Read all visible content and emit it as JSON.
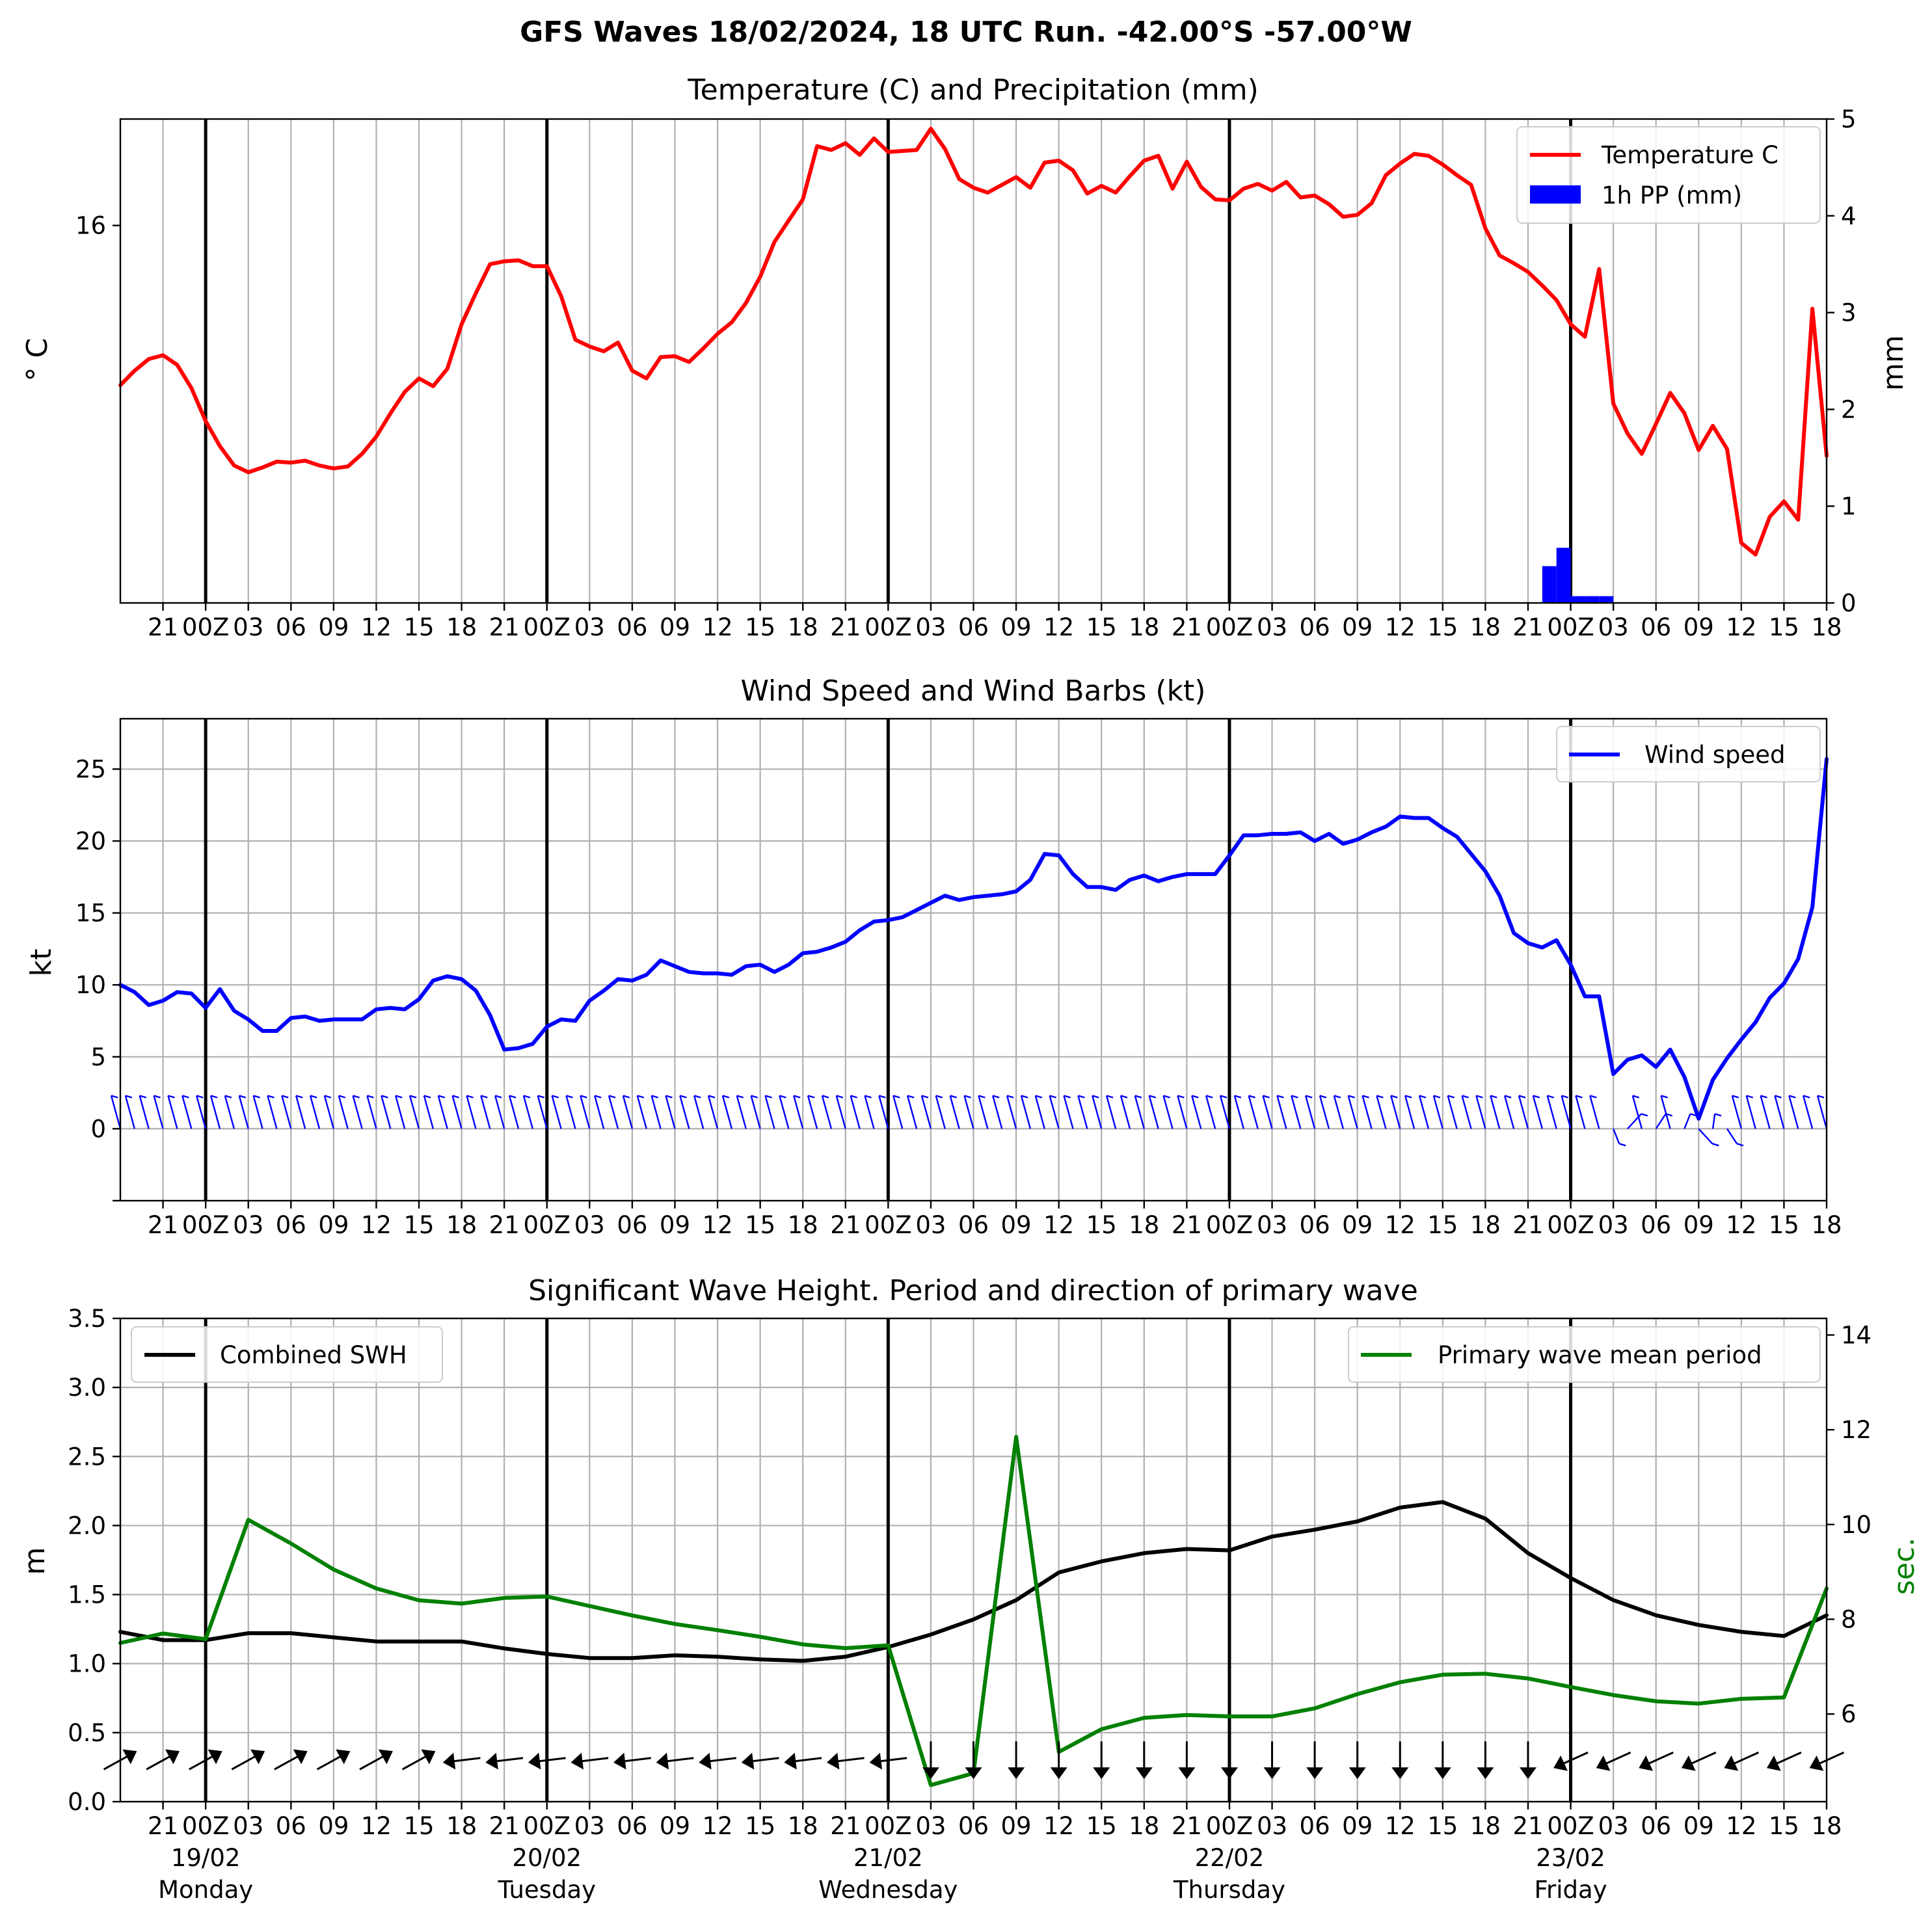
{
  "suptitle": "GFS Waves 18/02/2024, 18 UTC Run. -42.00°S -57.00°W",
  "colors": {
    "temperature": "#ff0000",
    "precip": "#0000ff",
    "wind": "#0000ff",
    "swh": "#000000",
    "period": "#008000",
    "grid": "#b0b0b0",
    "day_line": "#000000"
  },
  "time_axis": {
    "x_ticks": [
      "21",
      "00Z",
      "03",
      "06",
      "09",
      "12",
      "15",
      "18",
      "21",
      "00Z",
      "03",
      "06",
      "09",
      "12",
      "15",
      "18",
      "21",
      "00Z",
      "03",
      "06",
      "09",
      "12",
      "15",
      "18",
      "21",
      "00Z",
      "03",
      "06",
      "09",
      "12",
      "15",
      "18",
      "21",
      "00Z",
      "03",
      "06",
      "09",
      "12",
      "15",
      "18"
    ],
    "day_dates": [
      "19/02",
      "20/02",
      "21/02",
      "22/02",
      "23/02"
    ],
    "day_names": [
      "Monday",
      "Tuesday",
      "Wednesday",
      "Thursday",
      "Friday"
    ]
  },
  "chart_data": [
    {
      "type": "line",
      "title": "Temperature (C) and Precipitation (mm)",
      "ylabel": "° C",
      "ylabel_right": "mm",
      "y_ticks": [
        "16"
      ],
      "y_right_ticks": [
        "0",
        "1",
        "2",
        "3",
        "4",
        "5"
      ],
      "ylim_right": [
        0,
        5
      ],
      "ylim": [
        12.1,
        17.1
      ],
      "x_range_hours": [
        18,
        138
      ],
      "legend": [
        "Temperature C",
        "1h PP (mm)"
      ],
      "legend_position": "top-right",
      "grid": true,
      "series": [
        {
          "name": "Temperature C",
          "hours": [
            18,
            19,
            20,
            21,
            22,
            23,
            24,
            25,
            26,
            27,
            28,
            29,
            30,
            31,
            32,
            33,
            34,
            35,
            36,
            37,
            38,
            39,
            40,
            41,
            42,
            43,
            44,
            45,
            46,
            47,
            48,
            49,
            50,
            51,
            52,
            53,
            54,
            55,
            56,
            57,
            58,
            59,
            60,
            61,
            62,
            63,
            64,
            65,
            66,
            67,
            68,
            69,
            70,
            71,
            72,
            73,
            74,
            75,
            76,
            77,
            78,
            79,
            80,
            81,
            82,
            83,
            84,
            85,
            86,
            87,
            88,
            89,
            90,
            91,
            92,
            93,
            94,
            95,
            96,
            97,
            98,
            99,
            100,
            101,
            102,
            103,
            104,
            105,
            106,
            107,
            108,
            109,
            110,
            111,
            112,
            113,
            114,
            115,
            116,
            117,
            118,
            119,
            120,
            121,
            122,
            123,
            124,
            125,
            126,
            127,
            128,
            129,
            130,
            131,
            132,
            133,
            134,
            135,
            136,
            137,
            138
          ],
          "values": [
            14.35,
            14.5,
            14.62,
            14.66,
            14.56,
            14.32,
            13.98,
            13.72,
            13.52,
            13.45,
            13.5,
            13.56,
            13.55,
            13.57,
            13.52,
            13.49,
            13.51,
            13.64,
            13.82,
            14.06,
            14.28,
            14.42,
            14.34,
            14.52,
            14.98,
            15.3,
            15.6,
            15.63,
            15.64,
            15.58,
            15.58,
            15.27,
            14.82,
            14.75,
            14.7,
            14.79,
            14.5,
            14.42,
            14.64,
            14.65,
            14.59,
            14.73,
            14.88,
            15.0,
            15.2,
            15.47,
            15.83,
            16.05,
            16.27,
            16.82,
            16.78,
            16.85,
            16.73,
            16.9,
            16.76,
            16.77,
            16.78,
            17.0,
            16.79,
            16.48,
            16.39,
            16.34,
            16.42,
            16.5,
            16.39,
            16.65,
            16.67,
            16.57,
            16.33,
            16.41,
            16.34,
            16.51,
            16.67,
            16.72,
            16.38,
            16.66,
            16.4,
            16.27,
            16.26,
            16.38,
            16.43,
            16.36,
            16.45,
            16.29,
            16.31,
            16.22,
            16.09,
            16.11,
            16.23,
            16.52,
            16.64,
            16.74,
            16.72,
            16.63,
            16.52,
            16.42,
            15.97,
            15.69,
            15.61,
            15.52,
            15.38,
            15.23,
            14.98,
            14.85,
            15.55,
            14.16,
            13.85,
            13.64,
            13.95,
            14.27,
            14.06,
            13.68,
            13.93,
            13.69,
            12.72,
            12.6,
            12.99,
            13.15,
            12.96,
            15.14,
            13.62
          ]
        },
        {
          "name": "1h PP (mm)",
          "type": "bar",
          "hours": [
            118,
            119,
            120,
            121,
            122
          ],
          "values": [
            0.38,
            0.57,
            0.07,
            0.07,
            0.07
          ]
        }
      ]
    },
    {
      "type": "line",
      "title": "Wind Speed and Wind Barbs (kt)",
      "ylabel": "kt",
      "y_ticks": [
        "0",
        "5",
        "10",
        "15",
        "20",
        "25"
      ],
      "ylim": [
        -5,
        28.5
      ],
      "x_range_hours": [
        18,
        138
      ],
      "legend": [
        "Wind speed"
      ],
      "legend_position": "top-right",
      "grid": true,
      "series": [
        {
          "name": "Wind speed",
          "hours": [
            18,
            19,
            20,
            21,
            22,
            23,
            24,
            25,
            26,
            27,
            28,
            29,
            30,
            31,
            32,
            33,
            34,
            35,
            36,
            37,
            38,
            39,
            40,
            41,
            42,
            43,
            44,
            45,
            46,
            47,
            48,
            49,
            50,
            51,
            52,
            53,
            54,
            55,
            56,
            57,
            58,
            59,
            60,
            61,
            62,
            63,
            64,
            65,
            66,
            67,
            68,
            69,
            70,
            71,
            72,
            73,
            74,
            75,
            76,
            77,
            78,
            79,
            80,
            81,
            82,
            83,
            84,
            85,
            86,
            87,
            88,
            89,
            90,
            91,
            92,
            93,
            94,
            95,
            96,
            97,
            98,
            99,
            100,
            101,
            102,
            103,
            104,
            105,
            106,
            107,
            108,
            109,
            110,
            111,
            112,
            113,
            114,
            115,
            116,
            117,
            118,
            119,
            120,
            121,
            122,
            123,
            124,
            125,
            126,
            127,
            128,
            129,
            130,
            131,
            132,
            133,
            134,
            135,
            136,
            137,
            138
          ],
          "values": [
            10.0,
            9.5,
            8.6,
            8.9,
            9.5,
            9.4,
            8.4,
            9.7,
            8.2,
            7.6,
            6.8,
            6.8,
            7.7,
            7.8,
            7.5,
            7.6,
            7.6,
            7.6,
            8.3,
            8.4,
            8.3,
            9.0,
            10.3,
            10.6,
            10.4,
            9.6,
            7.9,
            5.5,
            5.6,
            5.9,
            7.1,
            7.6,
            7.5,
            8.9,
            9.6,
            10.4,
            10.3,
            10.7,
            11.7,
            11.3,
            10.9,
            10.8,
            10.8,
            10.7,
            11.3,
            11.4,
            10.9,
            11.4,
            12.2,
            12.3,
            12.6,
            13.0,
            13.8,
            14.4,
            14.5,
            14.7,
            15.2,
            15.7,
            16.2,
            15.9,
            16.1,
            16.2,
            16.3,
            16.5,
            17.3,
            19.1,
            19.0,
            17.7,
            16.8,
            16.8,
            16.6,
            17.3,
            17.6,
            17.2,
            17.5,
            17.7,
            17.7,
            17.7,
            19.0,
            20.4,
            20.4,
            20.5,
            20.5,
            20.6,
            20.0,
            20.5,
            19.8,
            20.1,
            20.6,
            21.0,
            21.7,
            21.6,
            21.6,
            20.9,
            20.3,
            19.1,
            17.9,
            16.2,
            13.6,
            12.9,
            12.6,
            13.1,
            11.4,
            9.2,
            9.2,
            3.8,
            4.8,
            5.1,
            4.3,
            5.5,
            3.6,
            0.7,
            3.4,
            4.9,
            6.2,
            7.4,
            9.1,
            10.1,
            11.8,
            15.4,
            25.7
          ]
        }
      ]
    },
    {
      "type": "line",
      "title": "Significant Wave Height. Period and direction of primary wave",
      "ylabel": "m",
      "ylabel_right": "sec.",
      "y_ticks": [
        "0.0",
        "0.5",
        "1.0",
        "1.5",
        "2.0",
        "2.5",
        "3.0",
        "3.5"
      ],
      "y_right_ticks": [
        "6",
        "8",
        "10",
        "12",
        "14"
      ],
      "ylim": [
        0,
        3.5
      ],
      "ylim_right": [
        4.15,
        14.35
      ],
      "x_range_hours": [
        18,
        138
      ],
      "legend": [
        "Combined SWH",
        "Primary wave mean period"
      ],
      "grid": true,
      "series": [
        {
          "name": "Combined SWH",
          "hours": [
            18,
            21,
            24,
            27,
            30,
            33,
            36,
            39,
            42,
            45,
            48,
            51,
            54,
            57,
            60,
            63,
            66,
            69,
            72,
            75,
            78,
            81,
            84,
            87,
            90,
            93,
            96,
            99,
            102,
            105,
            108,
            111,
            114,
            117,
            120,
            123,
            126,
            129,
            132,
            135,
            138
          ],
          "values": [
            1.23,
            1.17,
            1.17,
            1.22,
            1.22,
            1.19,
            1.16,
            1.16,
            1.16,
            1.11,
            1.07,
            1.04,
            1.04,
            1.06,
            1.05,
            1.03,
            1.02,
            1.05,
            1.12,
            1.21,
            1.32,
            1.46,
            1.66,
            1.74,
            1.8,
            1.83,
            1.82,
            1.92,
            1.97,
            2.03,
            2.13,
            2.17,
            2.05,
            1.8,
            1.62,
            1.46,
            1.35,
            1.28,
            1.23,
            1.2,
            1.35
          ]
        },
        {
          "name": "Primary wave mean period",
          "hours": [
            18,
            21,
            24,
            27,
            30,
            33,
            36,
            39,
            42,
            45,
            48,
            51,
            54,
            57,
            60,
            63,
            66,
            69,
            72,
            75,
            78,
            81,
            84,
            87,
            90,
            93,
            96,
            99,
            102,
            105,
            108,
            111,
            114,
            117,
            120,
            123,
            126,
            129,
            132,
            135,
            138
          ],
          "values": [
            7.5,
            7.7,
            7.58,
            10.1,
            9.6,
            9.05,
            8.65,
            8.4,
            8.33,
            8.45,
            8.48,
            8.28,
            8.08,
            7.9,
            7.77,
            7.63,
            7.47,
            7.39,
            7.45,
            4.5,
            4.75,
            11.85,
            5.2,
            5.68,
            5.92,
            5.98,
            5.95,
            5.95,
            6.12,
            6.42,
            6.67,
            6.83,
            6.85,
            6.75,
            6.57,
            6.4,
            6.27,
            6.22,
            6.32,
            6.35,
            8.65
          ]
        }
      ],
      "wave_direction_arrows": {
        "hours": [
          18,
          21,
          24,
          27,
          30,
          33,
          36,
          39,
          42,
          45,
          48,
          51,
          54,
          57,
          60,
          63,
          66,
          69,
          72,
          75,
          78,
          81,
          84,
          87,
          90,
          93,
          96,
          99,
          102,
          105,
          108,
          111,
          114,
          117,
          120,
          123,
          126,
          129,
          132,
          135,
          138
        ],
        "direction": [
          "NE",
          "NE",
          "NE",
          "NE",
          "NE",
          "NE",
          "NE",
          "NE",
          "W",
          "W",
          "W",
          "W",
          "W",
          "W",
          "W",
          "W",
          "W",
          "W",
          "W",
          "S",
          "S",
          "S",
          "S",
          "S",
          "S",
          "S",
          "S",
          "S",
          "S",
          "S",
          "S",
          "S",
          "S",
          "S",
          "SW",
          "SW",
          "SW",
          "SW",
          "SW",
          "SW",
          "SW"
        ]
      }
    }
  ]
}
